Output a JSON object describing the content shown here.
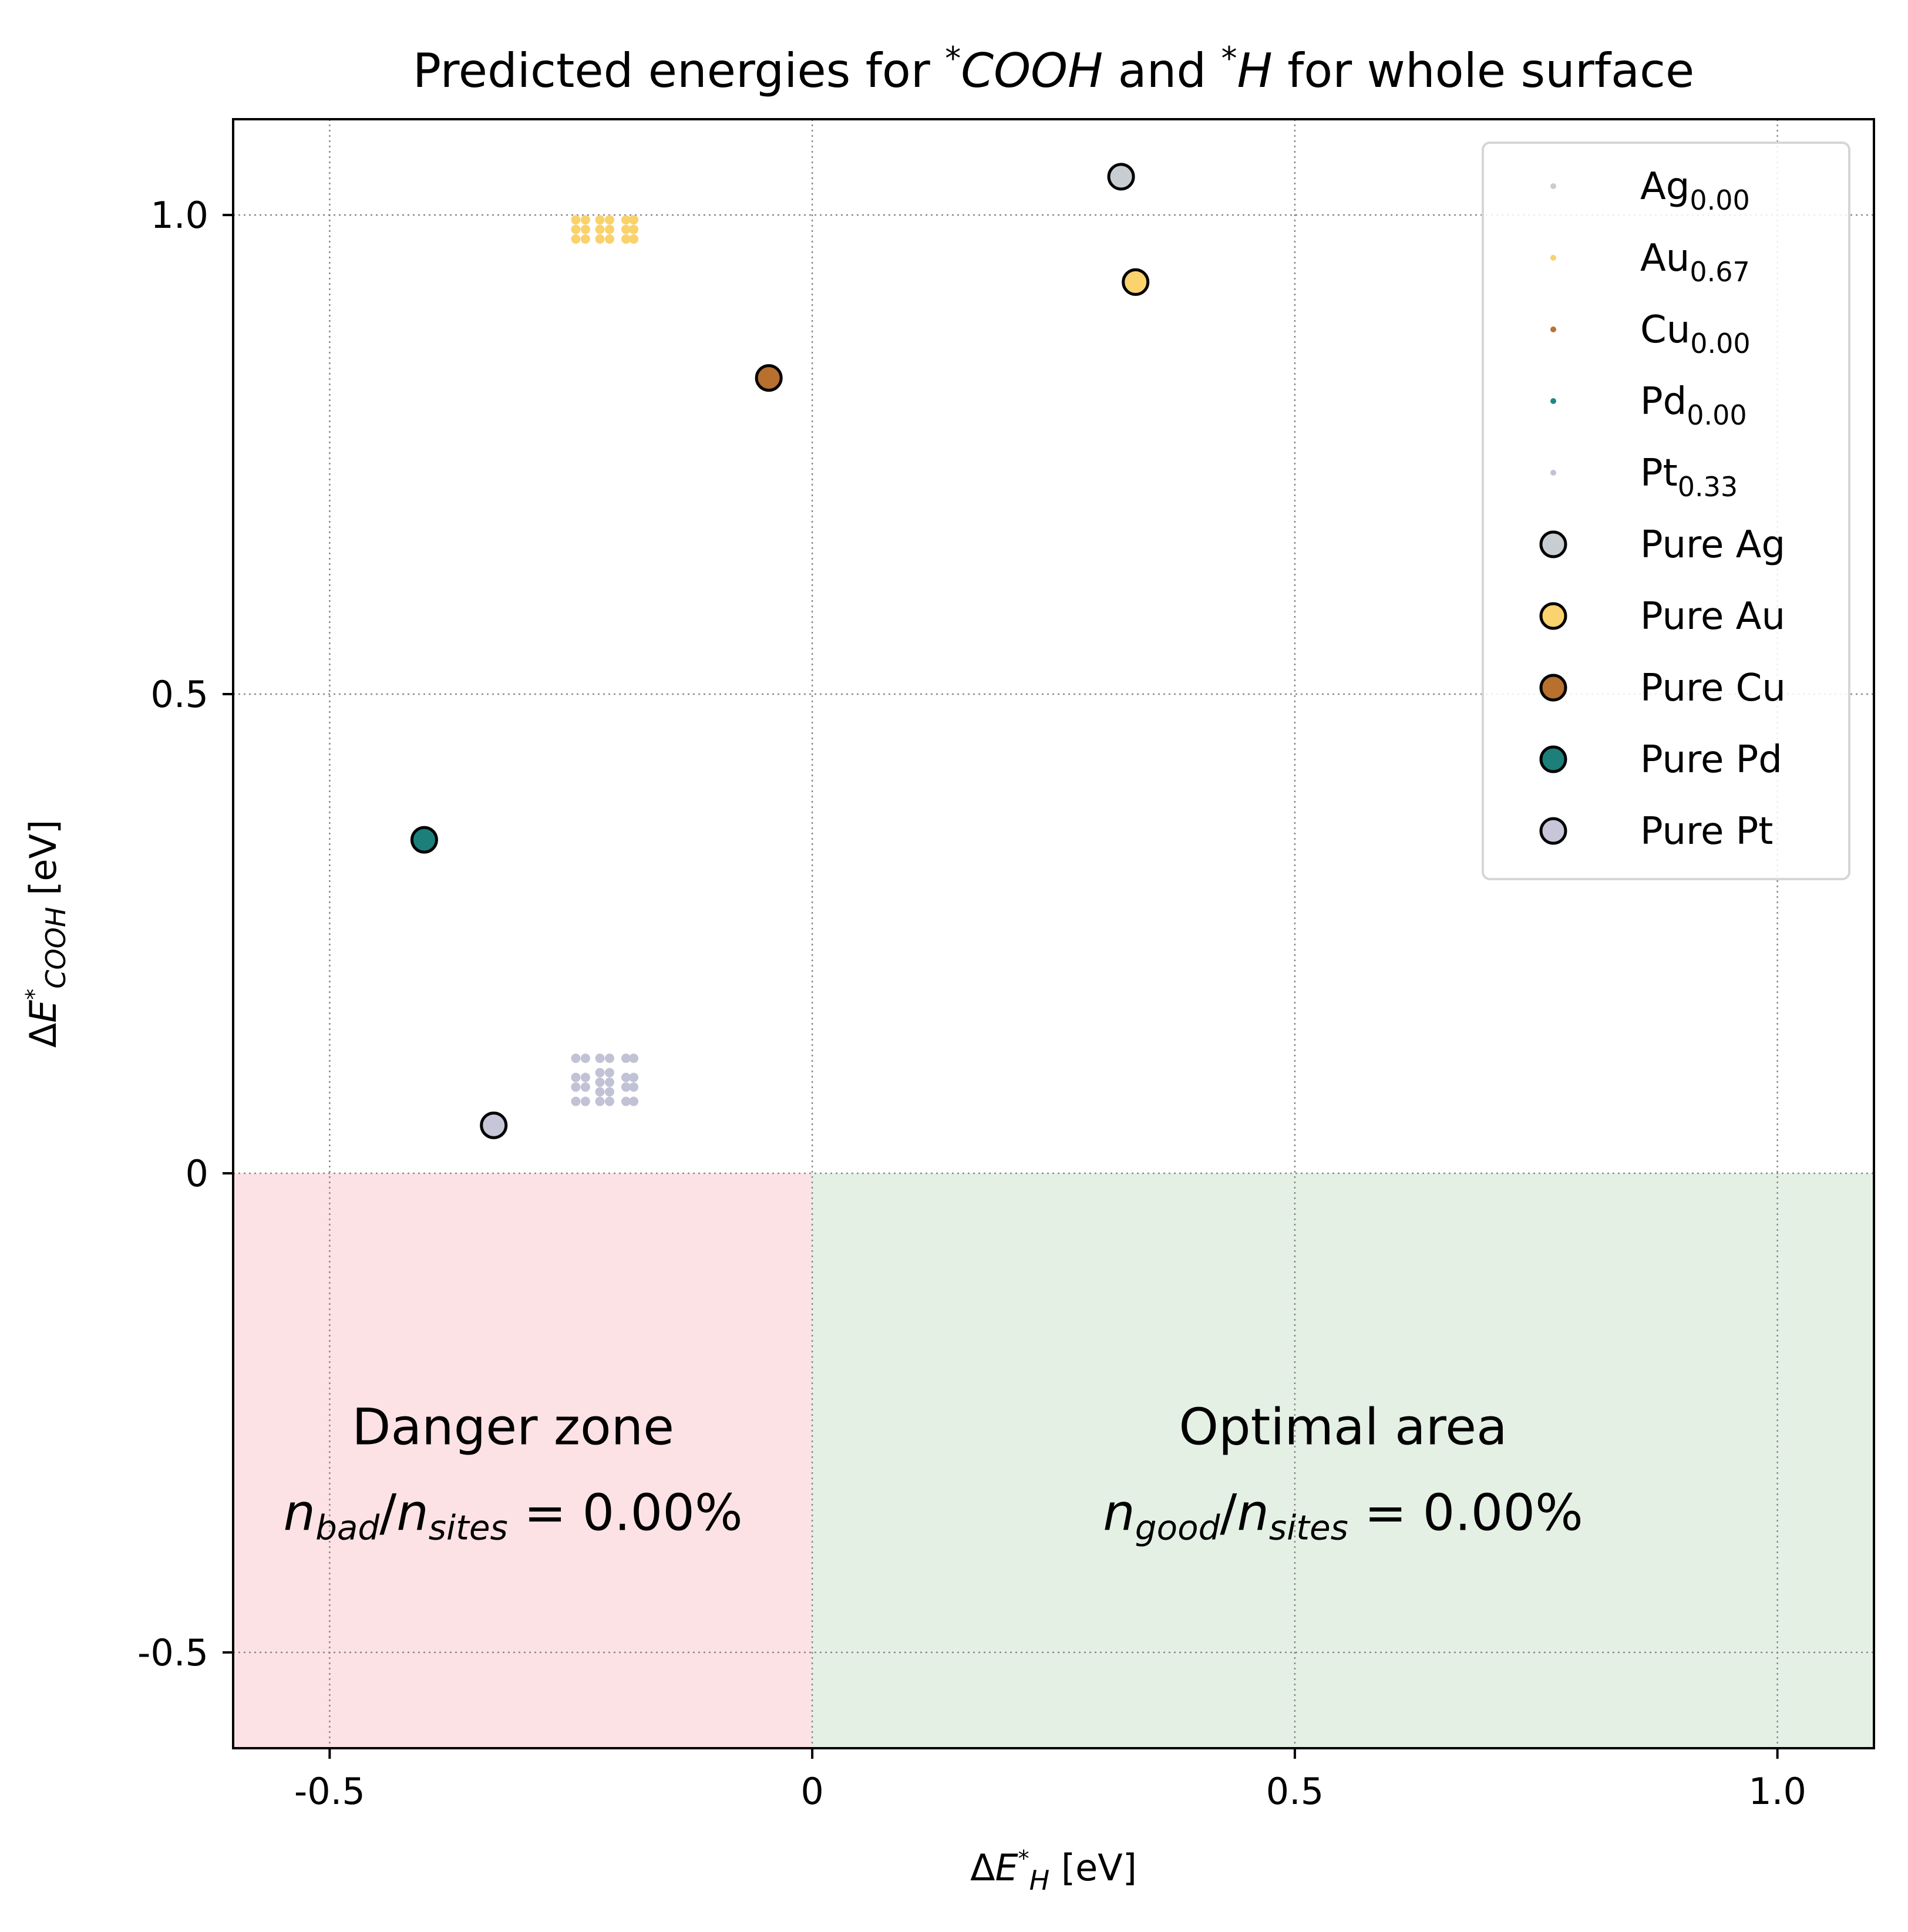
{
  "chart_data": {
    "type": "scatter",
    "title_parts": [
      "Predicted energies for ",
      "*",
      "COOH",
      " and ",
      "*",
      "H",
      " for whole surface"
    ],
    "xlabel": {
      "prefix": "ΔE",
      "sup": "*",
      "sub": "H",
      "unit": " [eV]"
    },
    "ylabel": {
      "prefix": "ΔE",
      "sup": "*",
      "sub": "COOH",
      "unit": " [eV]"
    },
    "xlim": [
      -0.6,
      1.1
    ],
    "ylim": [
      -0.6,
      1.1
    ],
    "xticks": [
      -0.5,
      0,
      0.5,
      1.0
    ],
    "xtick_labels": [
      "-0.5",
      "0",
      "0.5",
      "1.0"
    ],
    "yticks": [
      -0.5,
      0,
      0.5,
      1.0
    ],
    "ytick_labels": [
      "-0.5",
      "0",
      "0.5",
      "1.0"
    ],
    "grid": true,
    "legend_placement": "upper right",
    "zones": [
      {
        "name": "danger",
        "x": [
          -0.6,
          0
        ],
        "y": [
          -0.6,
          0
        ],
        "color": "#fde2e5",
        "title": "Danger zone",
        "num": "n",
        "num_sub": "bad",
        "den": "n",
        "den_sub": "sites",
        "value": "= 0.00%",
        "label_at": [
          -0.31,
          -0.3
        ]
      },
      {
        "name": "optimal",
        "x": [
          0,
          1.1
        ],
        "y": [
          -0.6,
          0
        ],
        "color": "#e5f0e5",
        "title": "Optimal area",
        "num": "n",
        "num_sub": "good",
        "den": "n",
        "den_sub": "sites",
        "value": "= 0.00%",
        "label_at": [
          0.55,
          -0.3
        ]
      }
    ],
    "alloy_series": [
      {
        "name": "Ag",
        "fraction": "0.00",
        "color": "#c8cdd2",
        "points": []
      },
      {
        "name": "Au",
        "fraction": "0.67",
        "color": "#f9d26b",
        "points": [
          [
            -0.245,
            0.975
          ],
          [
            -0.245,
            0.985
          ],
          [
            -0.245,
            0.995
          ],
          [
            -0.235,
            0.975
          ],
          [
            -0.235,
            0.985
          ],
          [
            -0.235,
            0.995
          ],
          [
            -0.22,
            0.975
          ],
          [
            -0.22,
            0.985
          ],
          [
            -0.22,
            0.995
          ],
          [
            -0.21,
            0.975
          ],
          [
            -0.21,
            0.985
          ],
          [
            -0.21,
            0.995
          ],
          [
            -0.193,
            0.975
          ],
          [
            -0.193,
            0.985
          ],
          [
            -0.193,
            0.995
          ],
          [
            -0.185,
            0.975
          ],
          [
            -0.185,
            0.985
          ],
          [
            -0.185,
            0.995
          ]
        ]
      },
      {
        "name": "Cu",
        "fraction": "0.00",
        "color": "#b87333",
        "points": []
      },
      {
        "name": "Pd",
        "fraction": "0.00",
        "color": "#1f8a85",
        "points": []
      },
      {
        "name": "Pt",
        "fraction": "0.33",
        "color": "#c2c2d6",
        "points": [
          [
            -0.245,
            0.075
          ],
          [
            -0.245,
            0.09
          ],
          [
            -0.245,
            0.1
          ],
          [
            -0.245,
            0.12
          ],
          [
            -0.235,
            0.075
          ],
          [
            -0.235,
            0.09
          ],
          [
            -0.235,
            0.1
          ],
          [
            -0.235,
            0.12
          ],
          [
            -0.22,
            0.075
          ],
          [
            -0.22,
            0.085
          ],
          [
            -0.22,
            0.095
          ],
          [
            -0.22,
            0.105
          ],
          [
            -0.22,
            0.12
          ],
          [
            -0.21,
            0.075
          ],
          [
            -0.21,
            0.085
          ],
          [
            -0.21,
            0.095
          ],
          [
            -0.21,
            0.105
          ],
          [
            -0.21,
            0.12
          ],
          [
            -0.193,
            0.075
          ],
          [
            -0.193,
            0.09
          ],
          [
            -0.193,
            0.1
          ],
          [
            -0.193,
            0.12
          ],
          [
            -0.185,
            0.075
          ],
          [
            -0.185,
            0.09
          ],
          [
            -0.185,
            0.1
          ],
          [
            -0.185,
            0.12
          ]
        ]
      }
    ],
    "pure_metals": [
      {
        "name": "Pure Ag",
        "x": 0.32,
        "y": 1.04,
        "color": "#c8cdd2"
      },
      {
        "name": "Pure Au",
        "x": 0.335,
        "y": 0.93,
        "color": "#fad26e"
      },
      {
        "name": "Pure Cu",
        "x": -0.045,
        "y": 0.83,
        "color": "#b8702f"
      },
      {
        "name": "Pure Pd",
        "x": -0.402,
        "y": 0.348,
        "color": "#1c7f7a"
      },
      {
        "name": "Pure Pt",
        "x": -0.33,
        "y": 0.05,
        "color": "#c6c6d8"
      }
    ]
  }
}
